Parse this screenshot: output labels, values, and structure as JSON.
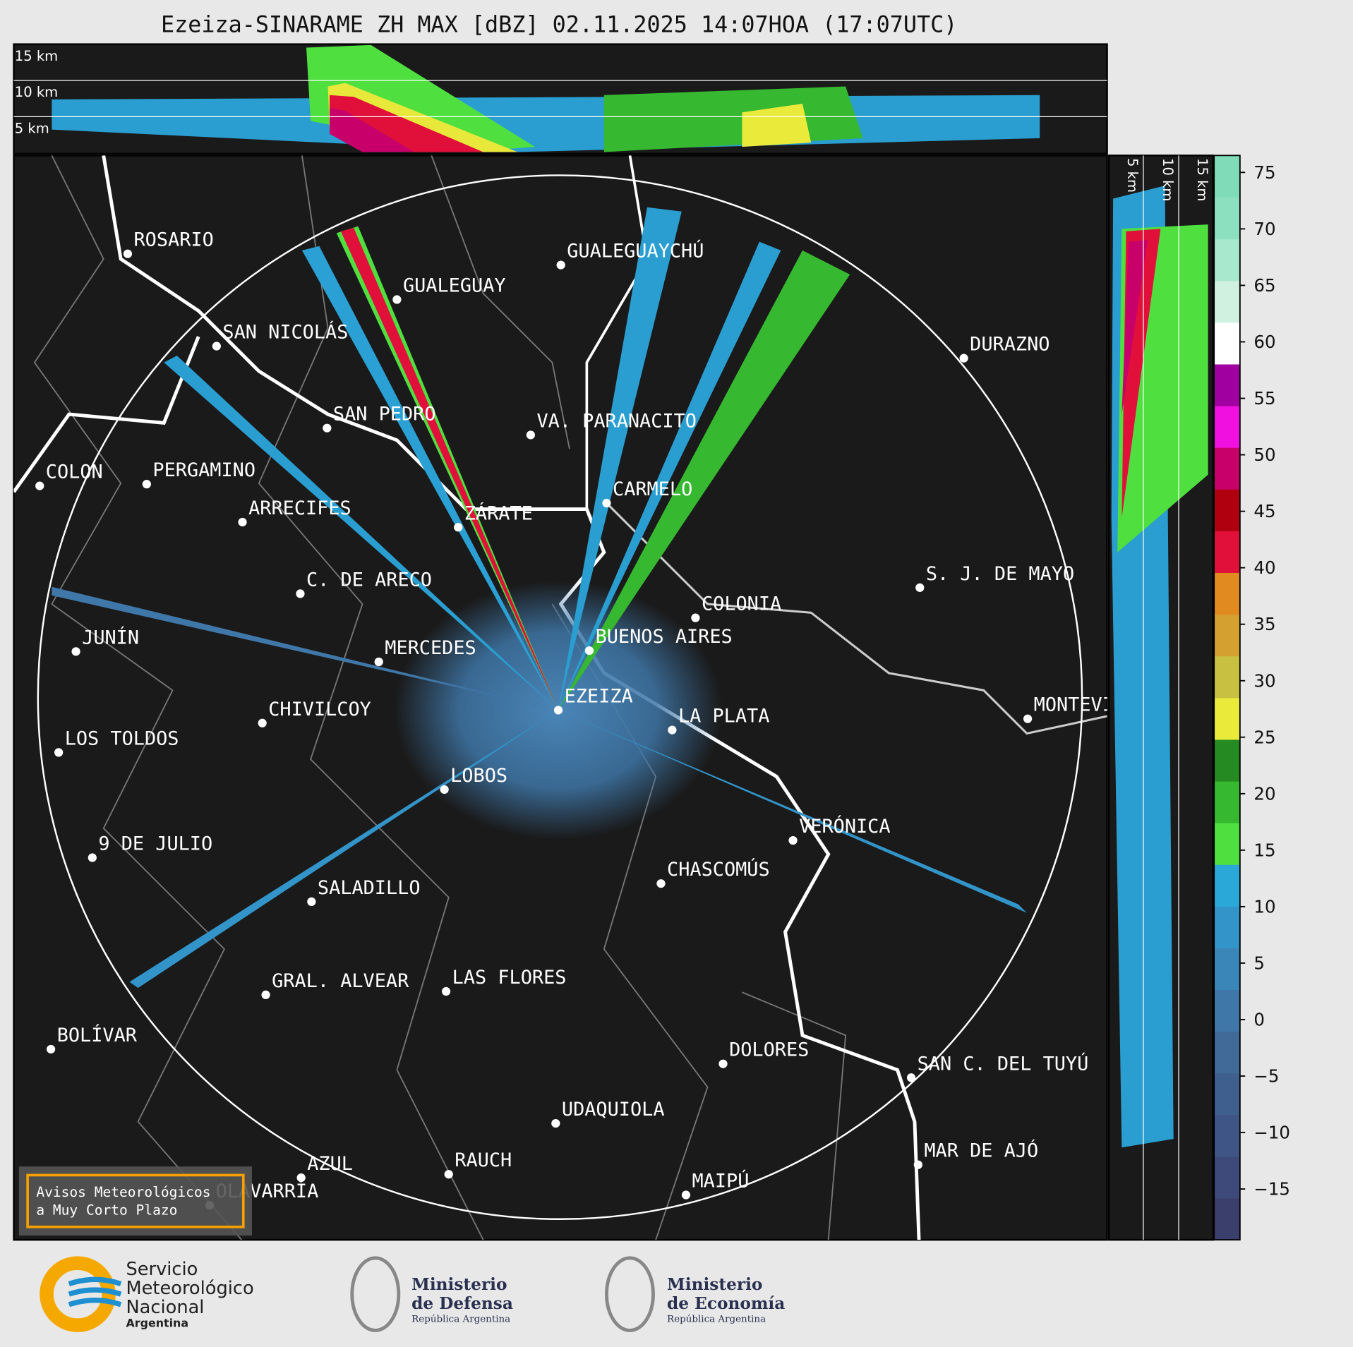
{
  "title": "Ezeiza-SINARAME ZH MAX [dBZ] 02.11.2025 14:07HOA (17:07UTC)",
  "height_labels": [
    "15 km",
    "10 km",
    "5 km"
  ],
  "cities": [
    "ROSARIO",
    "GUALEGUAYCHÚ",
    "GUALEGUAY",
    "SAN NICOLÁS",
    "DURAZNO",
    "SAN PEDRO",
    "VA. PARANACITO",
    "COLON",
    "PERGAMINO",
    "CARMELO",
    "ARRECIFES",
    "ZÁRATE",
    "S. J. DE MAYO",
    "C. DE ARECO",
    "COLONIA",
    "BUENOS AIRES",
    "JUNÍN",
    "MERCEDES",
    "EZEIZA",
    "MONTEVIDEO",
    "CHIVILCOY",
    "LA PLATA",
    "LOS TOLDOS",
    "LOBOS",
    "VERÓNICA",
    "9 DE JULIO",
    "CHASCOMÚS",
    "SALADILLO",
    "GRAL. ALVEAR",
    "LAS FLORES",
    "BOLÍVAR",
    "DOLORES",
    "SAN C. DEL TUYÚ",
    "UDAQUIOLA",
    "MAR DE AJÓ",
    "AZUL",
    "RAUCH",
    "OLAVARRÍA",
    "MAIPÚ"
  ],
  "colorbar": {
    "lim": [
      -19.5,
      76.5
    ],
    "ticks": [
      75,
      70,
      65,
      60,
      55,
      50,
      45,
      40,
      35,
      30,
      25,
      20,
      15,
      10,
      5,
      0,
      {
        "value": -5,
        "label": "−5"
      },
      {
        "value": -10,
        "label": "−10"
      },
      {
        "value": -15,
        "label": "−15"
      }
    ],
    "colors": [
      "#3a3f6b",
      "#3d4a7a",
      "#3e5585",
      "#3f5f8f",
      "#416a98",
      "#3f77a8",
      "#3a86b8",
      "#3294c8",
      "#2aa8d8",
      "#4fe040",
      "#36b830",
      "#268a22",
      "#eaea3a",
      "#c8c040",
      "#d4a030",
      "#e08a20",
      "#e0103a",
      "#b00010",
      "#c8006a",
      "#f010e0",
      "#a000a0",
      "#ffffff",
      "#d0f0e0",
      "#a8e8cc",
      "#8ce0c0",
      "#80dcb8"
    ]
  },
  "warning": [
    "Avisos Meteorológicos",
    "a Muy Corto Plazo"
  ],
  "footer": {
    "smn": [
      "Servicio",
      "Meteorológico",
      "Nacional",
      "Argentina"
    ],
    "defensa": [
      "Ministerio",
      "de Defensa",
      "República Argentina"
    ],
    "economia": [
      "Ministerio",
      "de Economía",
      "República Argentina"
    ]
  }
}
